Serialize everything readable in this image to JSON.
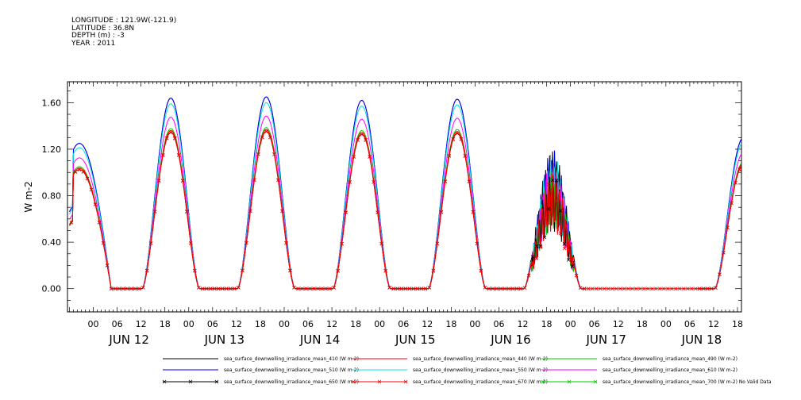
{
  "header": {
    "line1": "LONGITUDE : 121.9W(-121.9)",
    "line2": "LATITUDE : 36.8N",
    "line3": "DEPTH (m) : -3",
    "line4": "YEAR : 2011"
  },
  "chart_data": {
    "type": "line",
    "title": "",
    "ylabel": "W m-2",
    "xlabel": "",
    "ylim": [
      -0.2,
      1.78
    ],
    "xlim_hours_from_jun12_00": [
      -6.5,
      163
    ],
    "y_ticks": [
      "0.00",
      "0.40",
      "0.80",
      "1.20",
      "1.60"
    ],
    "y_tick_values": [
      0.0,
      0.4,
      0.8,
      1.2,
      1.6
    ],
    "x_hour_ticks": [
      "00",
      "06",
      "12",
      "18",
      "00",
      "06",
      "12",
      "18",
      "00",
      "06",
      "12",
      "18",
      "00",
      "06",
      "12",
      "18",
      "00",
      "06",
      "12",
      "18",
      "00",
      "06",
      "12",
      "18",
      "00",
      "06",
      "12",
      "18"
    ],
    "x_hour_tick_values": [
      0,
      6,
      12,
      18,
      24,
      30,
      36,
      42,
      48,
      54,
      60,
      66,
      72,
      78,
      84,
      90,
      96,
      102,
      108,
      114,
      120,
      126,
      132,
      138,
      144,
      150,
      156,
      162
    ],
    "x_day_labels": [
      "JUN 12",
      "JUN 13",
      "JUN 14",
      "JUN 15",
      "JUN 16",
      "JUN 17",
      "JUN 18"
    ],
    "x_day_label_centers": [
      9,
      33,
      57,
      81,
      105,
      129,
      153
    ],
    "daily_peaks_410": [
      1.64,
      1.65,
      1.62,
      1.63,
      1.2,
      0.0,
      1.3
    ],
    "series": [
      {
        "name": "sea_surface_downwelling_irradiance_mean_410 (W m-2)",
        "color": "#000000",
        "marker": ""
      },
      {
        "name": "sea_surface_downwelling_irradiance_mean_440 (W m-2)",
        "color": "#ff0000",
        "marker": ""
      },
      {
        "name": "sea_surface_downwelling_irradiance_mean_490 (W m-2)",
        "color": "#00cc00",
        "marker": ""
      },
      {
        "name": "sea_surface_downwelling_irradiance_mean_510 (W m-2)",
        "color": "#0000ff",
        "marker": ""
      },
      {
        "name": "sea_surface_downwelling_irradiance_mean_550 (W m-2)",
        "color": "#00e5e5",
        "marker": ""
      },
      {
        "name": "sea_surface_downwelling_irradiance_mean_610 (W m-2)",
        "color": "#ff00ff",
        "marker": ""
      },
      {
        "name": "sea_surface_downwelling_irradiance_mean_650 (W m-2)",
        "color": "#000000",
        "marker": "x"
      },
      {
        "name": "sea_surface_downwelling_irradiance_mean_670 (W m-2)",
        "color": "#ff0000",
        "marker": "x"
      },
      {
        "name": "sea_surface_downwelling_irradiance_mean_700 (W m-2) No Valid Data",
        "color": "#00cc00",
        "marker": "x"
      }
    ]
  }
}
